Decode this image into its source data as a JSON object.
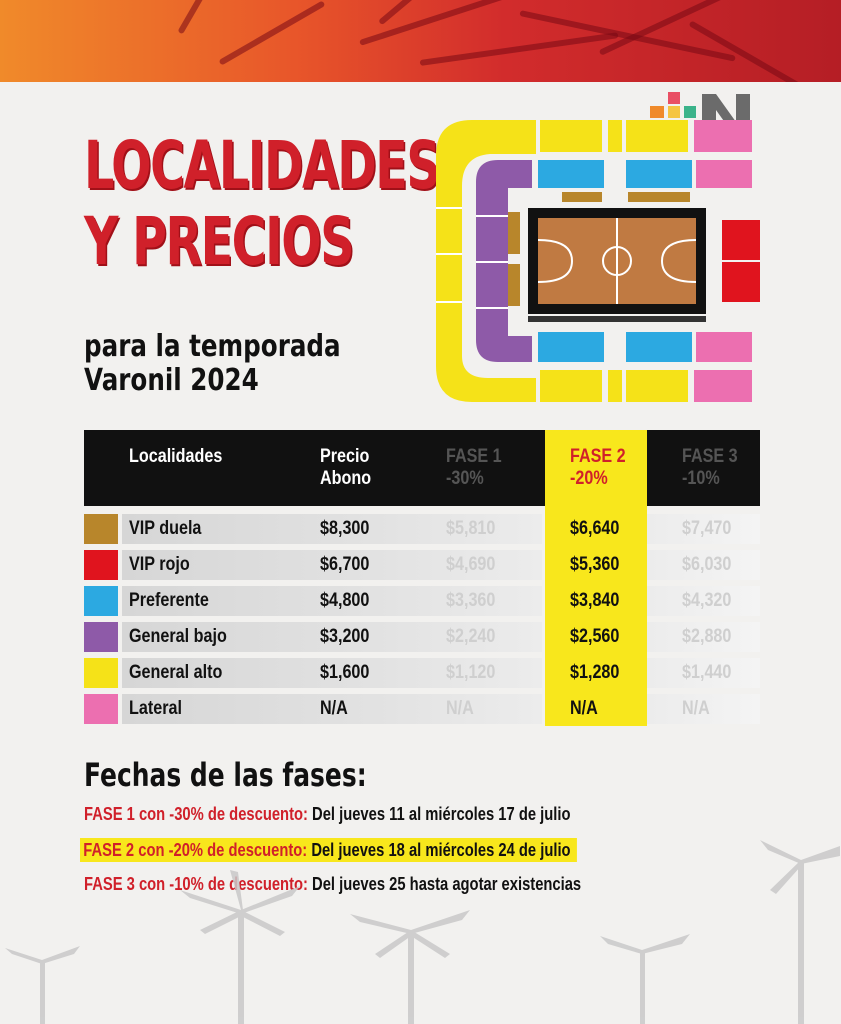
{
  "header": {
    "title_line1": "LOCALIDADES",
    "title_line2": "Y PRECIOS",
    "subtitle_line1": "para la temporada",
    "subtitle_line2": "Varonil 2024"
  },
  "logo": {
    "icon": "n-brand-logo"
  },
  "arena": {
    "icon": "basketball-court-seating-map"
  },
  "colors": {
    "accent_red": "#d0202a",
    "highlight_yellow": "#f8e71c",
    "vip_duela": "#b8862b",
    "vip_rojo": "#e0141e",
    "preferente": "#2ca9e1",
    "general_bajo": "#8e5aa8",
    "general_alto": "#f5e218",
    "lateral": "#ec6fb0"
  },
  "table": {
    "headers": {
      "localidades": "Localidades",
      "precio_1": "Precio",
      "precio_2": "Abono",
      "fase1_1": "FASE 1",
      "fase1_2": "-30%",
      "fase2_1": "FASE 2",
      "fase2_2": "-20%",
      "fase3_1": "FASE 3",
      "fase3_2": "-10%"
    },
    "rows": [
      {
        "name": "VIP duela",
        "precio": "$8,300",
        "fase1": "$5,810",
        "fase2": "$6,640",
        "fase3": "$7,470"
      },
      {
        "name": "VIP rojo",
        "precio": "$6,700",
        "fase1": "$4,690",
        "fase2": "$5,360",
        "fase3": "$6,030"
      },
      {
        "name": "Preferente",
        "precio": "$4,800",
        "fase1": "$3,360",
        "fase2": "$3,840",
        "fase3": "$4,320"
      },
      {
        "name": "General bajo",
        "precio": "$3,200",
        "fase1": "$2,240",
        "fase2": "$2,560",
        "fase3": "$2,880"
      },
      {
        "name": "General alto",
        "precio": "$1,600",
        "fase1": "$1,120",
        "fase2": "$1,280",
        "fase3": "$1,440"
      },
      {
        "name": "Lateral",
        "precio": "N/A",
        "fase1": "N/A",
        "fase2": "N/A",
        "fase3": "N/A"
      }
    ]
  },
  "fechas": {
    "title": "Fechas de las fases:",
    "lines": [
      {
        "label": "FASE 1 con -30% de descuento:",
        "value": "Del jueves 11 al miércoles 17 de julio"
      },
      {
        "label": "FASE 2 con -20% de descuento:",
        "value": "Del jueves 18 al miércoles 24 de julio"
      },
      {
        "label": "FASE 3 con -10%  de descuento:",
        "value": "Del jueves 25 hasta agotar existencias"
      }
    ]
  }
}
